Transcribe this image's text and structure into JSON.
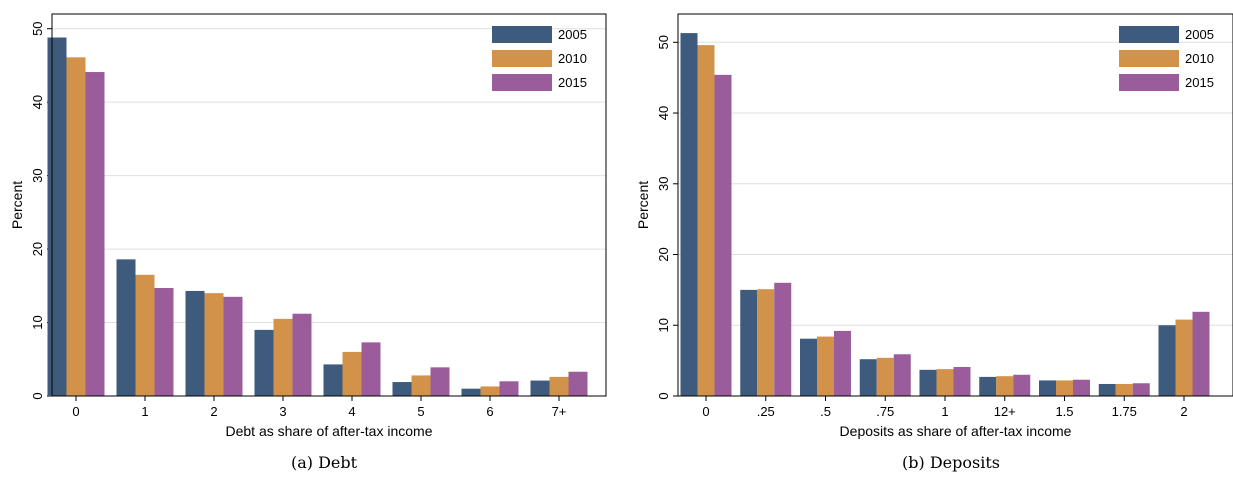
{
  "colors": {
    "s2005": "#3e5b7e",
    "s2010": "#d3924a",
    "s2015": "#9b5c9c",
    "grid": "#dfdfdf"
  },
  "chart_data": [
    {
      "type": "bar",
      "caption": "(a) Debt",
      "xlabel": "Debt as share of after-tax income",
      "ylabel": "Percent",
      "ylim": [
        0,
        52
      ],
      "yticks": [
        0,
        10,
        20,
        30,
        40,
        50
      ],
      "grid": true,
      "legend": "top-right",
      "categories": [
        "0",
        "1",
        "2",
        "3",
        "4",
        "5",
        "6",
        "7+"
      ],
      "series": [
        {
          "name": "2005",
          "values": [
            48.8,
            18.6,
            14.3,
            9.0,
            4.3,
            1.9,
            1.0,
            2.1
          ]
        },
        {
          "name": "2010",
          "values": [
            46.1,
            16.5,
            14.0,
            10.5,
            6.0,
            2.8,
            1.3,
            2.6
          ]
        },
        {
          "name": "2015",
          "values": [
            44.1,
            14.7,
            13.5,
            11.2,
            7.3,
            3.9,
            2.0,
            3.3
          ]
        }
      ]
    },
    {
      "type": "bar",
      "caption": "(b) Deposits",
      "xlabel": "Deposits as share of after-tax income",
      "ylabel": "Percent",
      "ylim": [
        0,
        54
      ],
      "yticks": [
        0,
        10,
        20,
        30,
        40,
        50
      ],
      "grid": true,
      "legend": "top-right",
      "categories": [
        "0",
        ".25",
        ".5",
        ".75",
        "1",
        "12+",
        "1.5",
        "1.75",
        "2"
      ],
      "series": [
        {
          "name": "2005",
          "values": [
            51.3,
            15.0,
            8.1,
            5.2,
            3.7,
            2.7,
            2.2,
            1.7,
            10.0
          ]
        },
        {
          "name": "2010",
          "values": [
            49.6,
            15.1,
            8.4,
            5.4,
            3.8,
            2.8,
            2.2,
            1.7,
            10.8
          ]
        },
        {
          "name": "2015",
          "values": [
            45.4,
            16.0,
            9.2,
            5.9,
            4.1,
            3.0,
            2.3,
            1.8,
            11.9
          ]
        }
      ]
    }
  ]
}
